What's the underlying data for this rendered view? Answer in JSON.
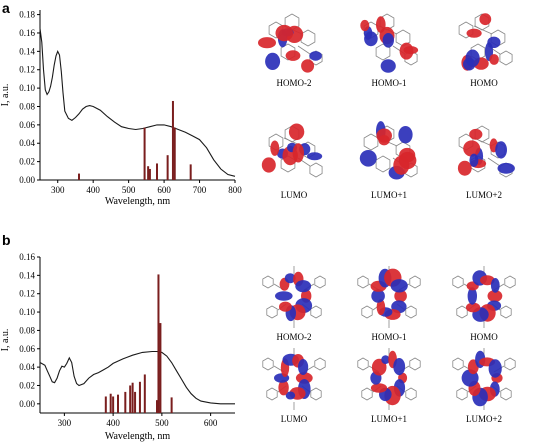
{
  "panels": [
    {
      "letter": "a",
      "chart_data": {
        "type": "line",
        "xlabel": "Wavelength, nm",
        "ylabel": "I, a.u.",
        "xlim": [
          250,
          800
        ],
        "ylim": [
          0,
          0.185
        ],
        "xticks": [
          300,
          400,
          500,
          600,
          700,
          800
        ],
        "yticks": [
          0.0,
          0.02,
          0.04,
          0.06,
          0.08,
          0.1,
          0.12,
          0.14,
          0.16,
          0.18
        ],
        "grid": false,
        "series": [
          {
            "kind": "line",
            "color": "#1a1a1a",
            "x": [
              250,
              255,
              260,
              265,
              270,
              275,
              280,
              285,
              290,
              295,
              300,
              305,
              310,
              315,
              320,
              330,
              340,
              350,
              360,
              370,
              380,
              390,
              400,
              420,
              440,
              460,
              480,
              500,
              520,
              540,
              560,
              580,
              600,
              620,
              640,
              660,
              680,
              700,
              720,
              740,
              760,
              780,
              800
            ],
            "y": [
              0.165,
              0.15,
              0.12,
              0.098,
              0.093,
              0.096,
              0.102,
              0.112,
              0.125,
              0.135,
              0.14,
              0.136,
              0.118,
              0.095,
              0.075,
              0.067,
              0.065,
              0.068,
              0.072,
              0.077,
              0.08,
              0.081,
              0.08,
              0.076,
              0.069,
              0.063,
              0.058,
              0.056,
              0.055,
              0.056,
              0.058,
              0.06,
              0.06,
              0.058,
              0.055,
              0.052,
              0.048,
              0.044,
              0.035,
              0.022,
              0.012,
              0.006,
              0.004
            ]
          },
          {
            "kind": "sticks",
            "color": "#7a1e1e",
            "x": [
              360,
              545,
              555,
              560,
              580,
              610,
              625,
              630,
              675
            ],
            "y": [
              0.007,
              0.057,
              0.015,
              0.012,
              0.018,
              0.027,
              0.086,
              0.057,
              0.017
            ]
          }
        ]
      },
      "orbitals": [
        "HOMO-2",
        "HOMO-1",
        "HOMO",
        "LUMO",
        "LUMO+1",
        "LUMO+2"
      ]
    },
    {
      "letter": "b",
      "chart_data": {
        "type": "line",
        "xlabel": "Wavelength, nm",
        "ylabel": "I, a.u.",
        "xlim": [
          250,
          650
        ],
        "ylim": [
          -0.01,
          0.16
        ],
        "xticks": [
          300,
          400,
          500,
          600
        ],
        "yticks": [
          0.0,
          0.02,
          0.04,
          0.06,
          0.08,
          0.1,
          0.12,
          0.14,
          0.16
        ],
        "grid": false,
        "series": [
          {
            "kind": "line",
            "color": "#1a1a1a",
            "x": [
              250,
              260,
              265,
              270,
              275,
              280,
              285,
              290,
              295,
              300,
              305,
              310,
              315,
              320,
              325,
              330,
              340,
              350,
              360,
              370,
              380,
              390,
              400,
              420,
              440,
              460,
              480,
              490,
              500,
              510,
              520,
              530,
              540,
              550,
              560,
              570,
              580,
              600,
              620,
              650
            ],
            "y": [
              0.045,
              0.042,
              0.036,
              0.03,
              0.024,
              0.023,
              0.028,
              0.036,
              0.041,
              0.04,
              0.044,
              0.05,
              0.045,
              0.03,
              0.022,
              0.02,
              0.022,
              0.028,
              0.032,
              0.034,
              0.037,
              0.04,
              0.044,
              0.049,
              0.053,
              0.056,
              0.057,
              0.057,
              0.056,
              0.052,
              0.045,
              0.036,
              0.027,
              0.018,
              0.011,
              0.006,
              0.003,
              0.001,
              0.0,
              0.0
            ]
          },
          {
            "kind": "sticks",
            "color": "#7a1e1e",
            "x": [
              385,
              395,
              400,
              410,
              425,
              435,
              440,
              445,
              455,
              465,
              490,
              493,
              497,
              520
            ],
            "y": [
              0.008,
              0.011,
              0.008,
              0.01,
              0.013,
              0.02,
              0.023,
              0.013,
              0.024,
              0.032,
              0.004,
              0.141,
              0.088,
              0.007
            ]
          }
        ]
      },
      "orbitals": [
        "HOMO-2",
        "HOMO-1",
        "HOMO",
        "LUMO",
        "LUMO+1",
        "LUMO+2"
      ]
    }
  ]
}
